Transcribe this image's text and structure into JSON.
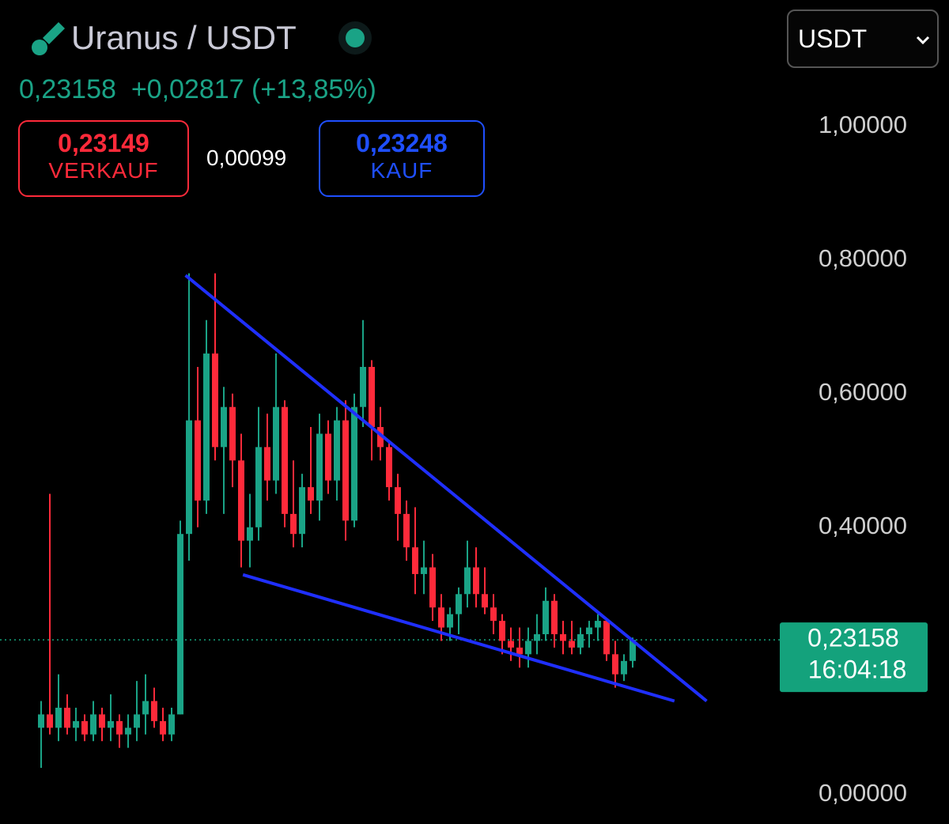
{
  "header": {
    "title": "Uranus / USDT",
    "price": "0,23158",
    "change": "+0,02817",
    "change_pct": "(+13,85%)",
    "sell_price": "0,23149",
    "sell_label": "VERKAUF",
    "spread": "0,00099",
    "buy_price": "0,23248",
    "buy_label": "KAUF",
    "currency": "USDT"
  },
  "chart_data": {
    "type": "candlestick",
    "up_color": "#1aa386",
    "down_color": "#ff2a3a",
    "open": [
      0.1,
      0.12,
      0.1,
      0.13,
      0.1,
      0.11,
      0.09,
      0.12,
      0.1,
      0.11,
      0.09,
      0.1,
      0.12,
      0.14,
      0.11,
      0.09,
      0.12,
      0.39,
      0.56,
      0.44,
      0.66,
      0.52,
      0.58,
      0.5,
      0.38,
      0.4,
      0.52,
      0.47,
      0.58,
      0.42,
      0.39,
      0.46,
      0.44,
      0.54,
      0.47,
      0.56,
      0.41,
      0.58,
      0.64,
      0.55,
      0.52,
      0.46,
      0.42,
      0.37,
      0.33,
      0.34,
      0.28,
      0.25,
      0.27,
      0.3,
      0.34,
      0.3,
      0.28,
      0.26,
      0.23,
      0.22,
      0.21,
      0.23,
      0.24,
      0.29,
      0.24,
      0.23,
      0.22,
      0.24,
      0.25,
      0.26,
      0.21,
      0.18,
      0.2
    ],
    "high": [
      0.14,
      0.45,
      0.18,
      0.15,
      0.13,
      0.12,
      0.14,
      0.13,
      0.15,
      0.12,
      0.12,
      0.17,
      0.18,
      0.16,
      0.13,
      0.13,
      0.41,
      0.78,
      0.64,
      0.71,
      0.78,
      0.61,
      0.6,
      0.54,
      0.45,
      0.58,
      0.57,
      0.66,
      0.59,
      0.5,
      0.48,
      0.55,
      0.57,
      0.56,
      0.58,
      0.59,
      0.6,
      0.71,
      0.65,
      0.58,
      0.53,
      0.48,
      0.44,
      0.43,
      0.38,
      0.36,
      0.3,
      0.28,
      0.31,
      0.38,
      0.37,
      0.34,
      0.3,
      0.27,
      0.25,
      0.25,
      0.25,
      0.27,
      0.31,
      0.3,
      0.26,
      0.26,
      0.25,
      0.26,
      0.27,
      0.26,
      0.23,
      0.21,
      0.235
    ],
    "low": [
      0.04,
      0.09,
      0.08,
      0.09,
      0.08,
      0.08,
      0.08,
      0.08,
      0.08,
      0.07,
      0.07,
      0.08,
      0.09,
      0.1,
      0.08,
      0.08,
      0.12,
      0.35,
      0.4,
      0.42,
      0.5,
      0.42,
      0.46,
      0.34,
      0.34,
      0.38,
      0.44,
      0.45,
      0.4,
      0.37,
      0.37,
      0.42,
      0.41,
      0.45,
      0.44,
      0.38,
      0.4,
      0.55,
      0.5,
      0.5,
      0.44,
      0.38,
      0.35,
      0.3,
      0.3,
      0.26,
      0.23,
      0.23,
      0.24,
      0.28,
      0.28,
      0.27,
      0.24,
      0.21,
      0.2,
      0.19,
      0.19,
      0.21,
      0.23,
      0.22,
      0.21,
      0.21,
      0.21,
      0.22,
      0.23,
      0.2,
      0.16,
      0.17,
      0.19
    ],
    "close": [
      0.12,
      0.1,
      0.13,
      0.1,
      0.11,
      0.09,
      0.12,
      0.1,
      0.11,
      0.09,
      0.1,
      0.12,
      0.14,
      0.11,
      0.09,
      0.12,
      0.39,
      0.56,
      0.44,
      0.66,
      0.52,
      0.58,
      0.5,
      0.38,
      0.4,
      0.52,
      0.47,
      0.58,
      0.42,
      0.39,
      0.46,
      0.44,
      0.54,
      0.47,
      0.56,
      0.41,
      0.58,
      0.64,
      0.55,
      0.52,
      0.46,
      0.42,
      0.37,
      0.33,
      0.34,
      0.28,
      0.25,
      0.27,
      0.3,
      0.34,
      0.3,
      0.28,
      0.26,
      0.23,
      0.22,
      0.21,
      0.23,
      0.24,
      0.29,
      0.24,
      0.23,
      0.22,
      0.24,
      0.25,
      0.26,
      0.21,
      0.18,
      0.2,
      0.23158
    ],
    "ylim": [
      -0.044,
      1.189
    ],
    "yticks": [
      {
        "value": 0,
        "label": "0,00000"
      },
      {
        "value": 0.4,
        "label": "0,40000"
      },
      {
        "value": 0.6,
        "label": "0,60000"
      },
      {
        "value": 0.8,
        "label": "0,80000"
      },
      {
        "value": 1,
        "label": "1,00000"
      }
    ],
    "last": {
      "value": 0.23158,
      "label": "0,23158",
      "time": "16:04:18",
      "color": "#14a27c"
    },
    "trendlines": [
      {
        "x": [
          16.6,
          76.5
        ],
        "y": [
          0.777,
          0.14
        ],
        "color": "#1f2fff"
      },
      {
        "x": [
          23.2,
          72.8
        ],
        "y": [
          0.329,
          0.14
        ],
        "color": "#1f2fff"
      }
    ]
  }
}
